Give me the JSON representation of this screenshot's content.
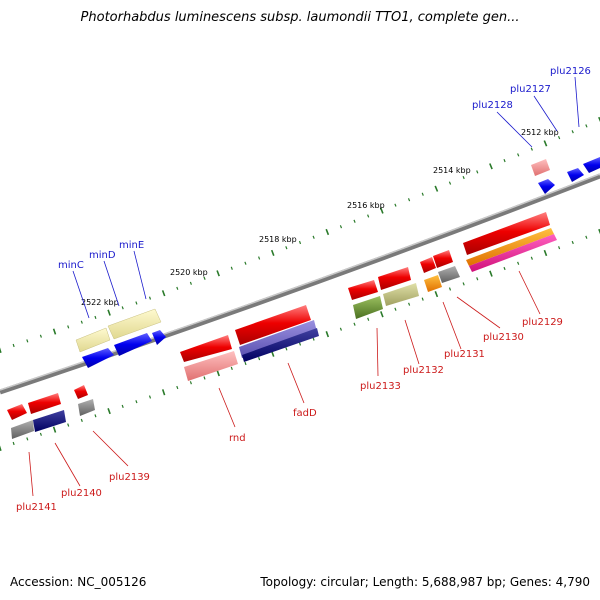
{
  "title": "Photorhabdus luminescens subsp. laumondii TTO1, complete gen...",
  "footer": {
    "accession": "Accession: NC_005126",
    "topology": "Topology: circular; Length: 5,688,987 bp; Genes: 4,790"
  },
  "scale_labels": [
    "2512 kbp",
    "2514 kbp",
    "2516 kbp",
    "2518 kbp",
    "2520 kbp",
    "2522 kbp"
  ],
  "genes_upper": [
    "plu2126",
    "plu2127",
    "plu2128",
    "minE",
    "minD",
    "minC"
  ],
  "genes_lower": [
    "plu2129",
    "plu2130",
    "plu2131",
    "plu2132",
    "plu2133",
    "fadD",
    "rnd",
    "plu2139",
    "plu2140",
    "plu2141"
  ],
  "colors": {
    "label_upper": "#1a1acc",
    "label_lower": "#cc1a1a",
    "backbone": "#8a8a8a",
    "tick": "#2a7a2a"
  }
}
